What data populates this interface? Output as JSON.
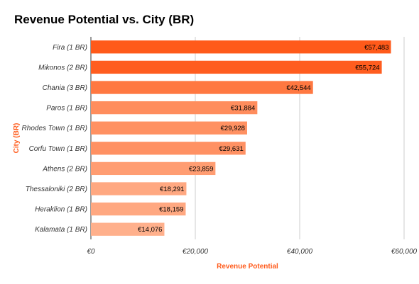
{
  "chart_data": {
    "type": "bar",
    "orientation": "horizontal",
    "title": "Revenue Potential vs. City (BR)",
    "xlabel": "Revenue Potential",
    "ylabel": "City (BR)",
    "categories": [
      "Fira (1 BR)",
      "Mikonos (2 BR)",
      "Chania (3 BR)",
      "Paros (1 BR)",
      "Rhodes Town (1 BR)",
      "Corfu Town (1 BR)",
      "Athens (2 BR)",
      "Thessaloniki (2 BR)",
      "Heraklion (1 BR)",
      "Kalamata (1 BR)"
    ],
    "values": [
      57483,
      55724,
      42544,
      31884,
      29928,
      29631,
      23859,
      18291,
      18159,
      14076
    ],
    "data_labels": [
      "€57,483",
      "€55,724",
      "€42,544",
      "€31,884",
      "€29,928",
      "€29,631",
      "€23,859",
      "€18,291",
      "€18,159",
      "€14,076"
    ],
    "xlim": [
      0,
      60000
    ],
    "x_ticks": [
      0,
      20000,
      40000,
      60000
    ],
    "x_tick_labels": [
      "€0",
      "€20,000",
      "€40,000",
      "€60,000"
    ],
    "grid": true,
    "colors": {
      "bar_max": "#ff5a1a",
      "bar_min": "#ffb08c",
      "axis_title": "#ff5a1a",
      "grid": "#cccccc"
    }
  }
}
